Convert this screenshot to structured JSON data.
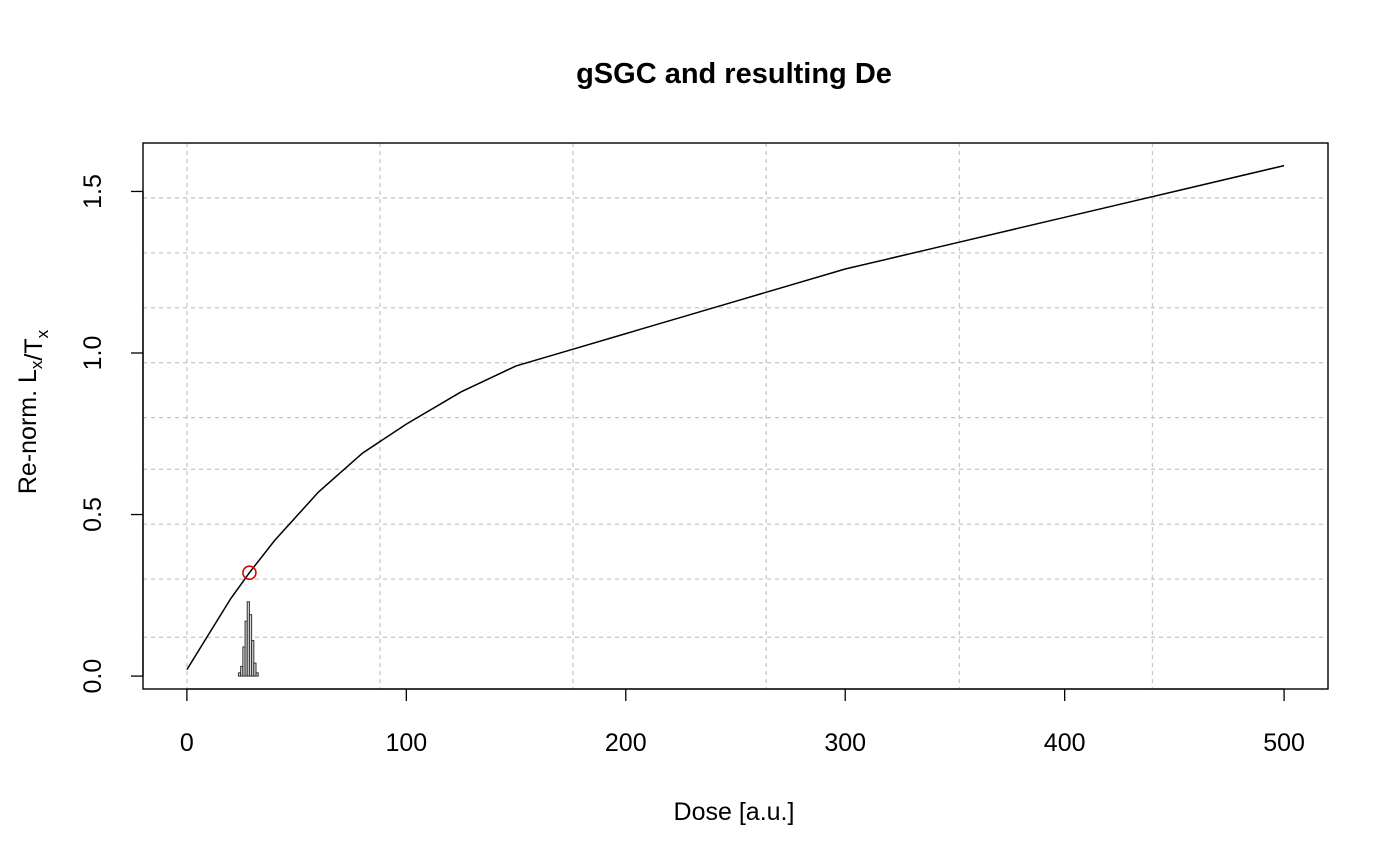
{
  "chart_data": {
    "type": "line",
    "title": "gSGC and resulting De",
    "xlabel": "Dose [a.u.]",
    "ylabel": {
      "prefix": "Re-norm. ",
      "parts": [
        {
          "text": "L",
          "sub": "x"
        },
        {
          "text": "/T",
          "sub": "x"
        }
      ]
    },
    "xlim": [
      -20,
      520
    ],
    "ylim": [
      -0.04,
      1.65
    ],
    "x_ticks": [
      0,
      100,
      200,
      300,
      400,
      500
    ],
    "y_ticks": [
      0.0,
      0.5,
      1.0,
      1.5
    ],
    "x_tick_labels": [
      "0",
      "100",
      "200",
      "300",
      "400",
      "500"
    ],
    "y_tick_labels": [
      "0.0",
      "0.5",
      "1.0",
      "1.5"
    ],
    "x_grid": [
      0,
      88,
      176,
      264,
      352,
      440
    ],
    "y_grid": [
      0.12,
      0.3,
      0.47,
      0.64,
      0.8,
      0.97,
      1.14,
      1.31,
      1.48
    ],
    "grid": true,
    "series": [
      {
        "kind": "curve",
        "x": [
          0,
          10,
          20,
          28.5,
          40,
          60,
          80,
          100,
          125,
          150,
          175,
          200,
          250,
          300,
          350,
          400,
          450,
          500
        ],
        "y": [
          0.02,
          0.13,
          0.24,
          0.32,
          0.42,
          0.57,
          0.69,
          0.78,
          0.88,
          0.96,
          1.01,
          1.06,
          1.16,
          1.26,
          1.34,
          1.42,
          1.5,
          1.58
        ],
        "color": "#000000"
      },
      {
        "kind": "histogram",
        "x": [
          24,
          25,
          26,
          27,
          28,
          29,
          30,
          31,
          32
        ],
        "y": [
          0.01,
          0.03,
          0.09,
          0.17,
          0.23,
          0.19,
          0.11,
          0.04,
          0.01
        ],
        "bin_width": 1,
        "color": "#d9d9d9"
      },
      {
        "kind": "point",
        "x": [
          28.5
        ],
        "y": [
          0.32
        ],
        "color": "#dd0000"
      }
    ]
  }
}
